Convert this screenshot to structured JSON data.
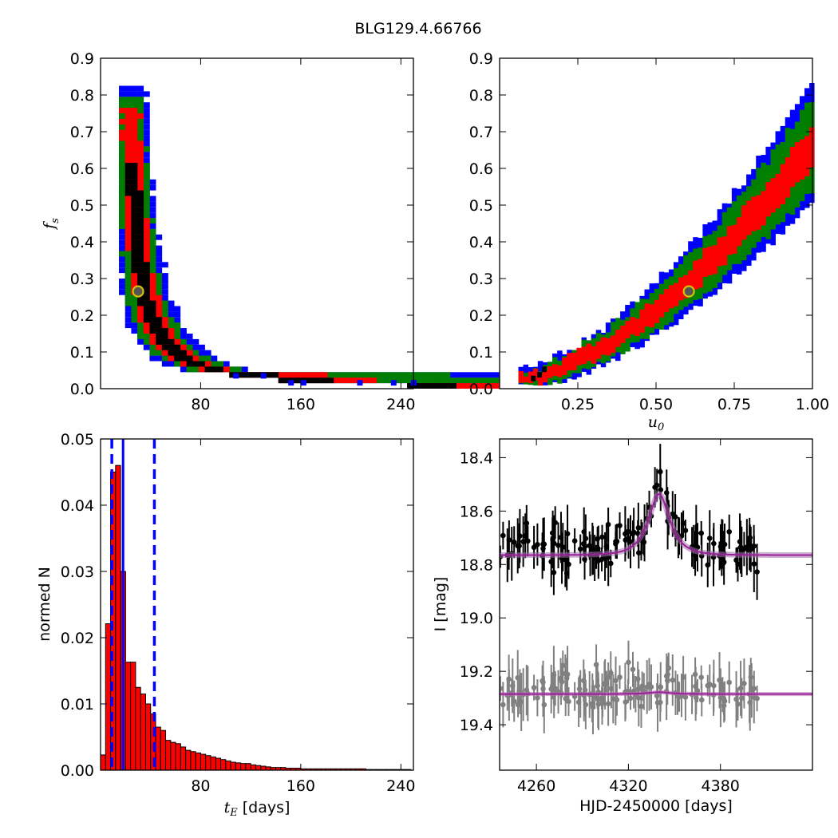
{
  "figure": {
    "title": "BLG129.4.66766"
  },
  "colors": {
    "blue": "#0000ff",
    "green": "#007f00",
    "red": "#ff0000",
    "black": "#000000",
    "best_fill": "#555555",
    "best_edge": "#d4c400",
    "model": "#9a1f9a",
    "data_main": "#000000",
    "data_secondary": "#808080"
  },
  "chart_data": [
    {
      "id": "fs-vs-tE",
      "type": "heatmap",
      "ylabel": "f",
      "ylabel_sub": "s",
      "xlim": [
        0,
        250
      ],
      "ylim": [
        0.0,
        0.9
      ],
      "xticks": [
        80,
        160,
        240
      ],
      "yticks": [
        0.0,
        0.1,
        0.2,
        0.3,
        0.4,
        0.5,
        0.6,
        0.7,
        0.8,
        0.9
      ],
      "ytick_labels": [
        "0.0",
        "0.1",
        "0.2",
        "0.3",
        "0.4",
        "0.5",
        "0.6",
        "0.7",
        "0.8",
        "0.9"
      ],
      "best_fit": {
        "x": 30,
        "y": 0.265
      },
      "levels": [
        "blue",
        "green",
        "red",
        "black"
      ]
    },
    {
      "id": "fs-vs-u0",
      "type": "heatmap",
      "xlabel": "u",
      "xlabel_sub": "0",
      "xlim": [
        0.0,
        1.0
      ],
      "ylim": [
        0.0,
        0.9
      ],
      "xticks": [
        0.25,
        0.5,
        0.75,
        1.0
      ],
      "xtick_labels": [
        "0.25",
        "0.50",
        "0.75",
        "1.00"
      ],
      "yticks": [
        0.0,
        0.1,
        0.2,
        0.3,
        0.4,
        0.5,
        0.6,
        0.7,
        0.8,
        0.9
      ],
      "ytick_labels": [
        "0.0",
        "0.1",
        "0.2",
        "0.3",
        "0.4",
        "0.5",
        "0.6",
        "0.7",
        "0.8",
        "0.9"
      ],
      "best_fit": {
        "x": 0.605,
        "y": 0.265
      },
      "levels": [
        "blue",
        "green",
        "red",
        "black"
      ]
    },
    {
      "id": "tE-histogram",
      "type": "bar",
      "xlabel": "t",
      "xlabel_sub": "E",
      "xlabel_unit": " [days]",
      "ylabel": "normed N",
      "xlim": [
        0,
        250
      ],
      "ylim": [
        0.0,
        0.05
      ],
      "xticks": [
        80,
        160,
        240
      ],
      "yticks": [
        0.0,
        0.01,
        0.02,
        0.03,
        0.04,
        0.05
      ],
      "ytick_labels": [
        "0.00",
        "0.01",
        "0.02",
        "0.03",
        "0.04",
        "0.05"
      ],
      "bin_start": 0,
      "bin_width": 4,
      "values": [
        0.0023,
        0.0221,
        0.045,
        0.046,
        0.03,
        0.0163,
        0.0163,
        0.0125,
        0.0115,
        0.01,
        0.0085,
        0.0065,
        0.006,
        0.0045,
        0.0042,
        0.004,
        0.0035,
        0.003,
        0.0028,
        0.0026,
        0.0024,
        0.0022,
        0.002,
        0.0018,
        0.0016,
        0.0014,
        0.0012,
        0.0011,
        0.001,
        0.001,
        0.0008,
        0.0007,
        0.0006,
        0.0005,
        0.0004,
        0.0004,
        0.0004,
        0.0003,
        0.0003,
        0.0003,
        0.0002,
        0.0002,
        0.0002,
        0.0002,
        0.0002,
        0.0002,
        0.0002,
        0.0002,
        0.0002,
        0.0002,
        0.0002,
        0.0002,
        0.0002,
        0.0001,
        0.0001,
        0.0001,
        0.0001,
        0.0001,
        0.0001,
        0.0001,
        0.0001,
        0.0001
      ],
      "median": 18,
      "percentile_lines": [
        9,
        43
      ]
    },
    {
      "id": "light-curve",
      "type": "scatter",
      "xlabel": "HJD-2450000 [days]",
      "ylabel": "I [mag]",
      "xlim": [
        4236,
        4440
      ],
      "ylim": [
        19.57,
        18.33
      ],
      "y_inverted": true,
      "xticks": [
        4260,
        4320,
        4380
      ],
      "yticks": [
        18.4,
        18.6,
        18.8,
        19.0,
        19.2,
        19.4
      ],
      "ytick_labels": [
        "18.4",
        "18.6",
        "18.8",
        "19.0",
        "19.2",
        "19.4"
      ],
      "model": {
        "t0": 4340,
        "tE": 12,
        "u0": 0.6,
        "fs": 0.265,
        "baseline_main": 18.765,
        "baseline_secondary": 19.285
      }
    }
  ]
}
